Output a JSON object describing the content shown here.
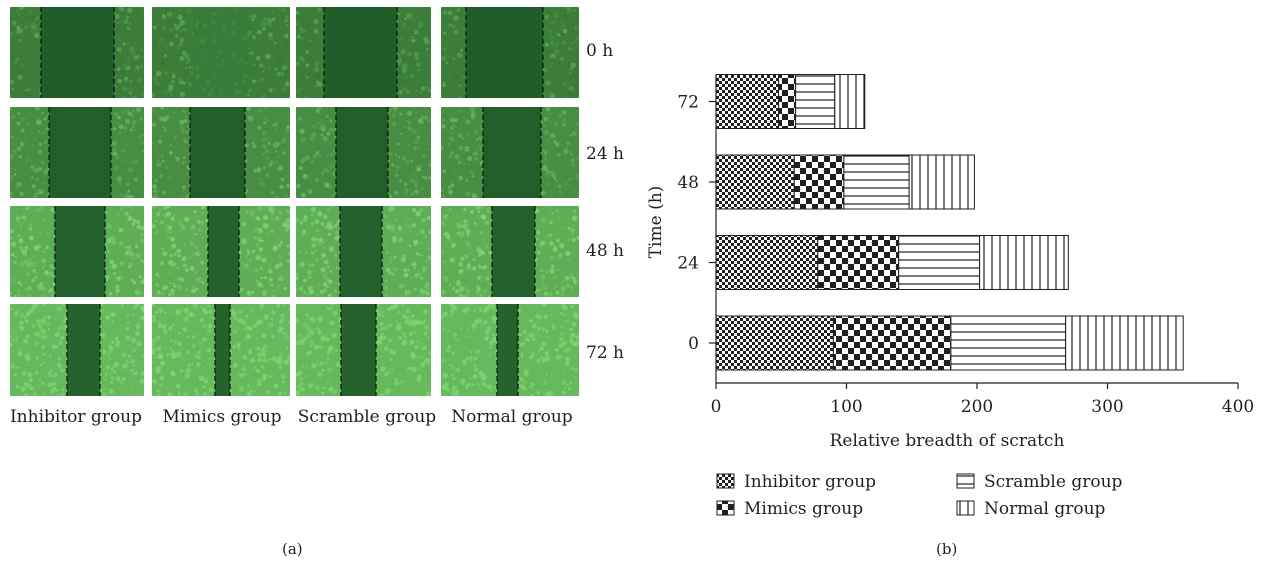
{
  "panel_a": {
    "time_labels": [
      "0 h",
      "24 h",
      "48 h",
      "72 h"
    ],
    "group_labels": [
      "Inhibitor group",
      "Mimics group",
      "Scramble group",
      "Normal group"
    ],
    "caption": "(a)"
  },
  "panel_b": {
    "caption": "(b)"
  },
  "colors": {
    "cells_dark": "#2e6b2e",
    "cells_light": "#7dd46f",
    "scratch": "#1f5a28",
    "ink": "#231f20"
  },
  "chart_data": {
    "type": "bar",
    "orientation": "horizontal",
    "stacked": true,
    "categories": [
      "0",
      "24",
      "48",
      "72"
    ],
    "series": [
      {
        "name": "Inhibitor group",
        "pattern": "fine-checker",
        "values": [
          90,
          78,
          60,
          48
        ]
      },
      {
        "name": "Mimics group",
        "pattern": "coarse-checker",
        "values": [
          90,
          62,
          38,
          13
        ]
      },
      {
        "name": "Scramble group",
        "pattern": "horizontal-lines",
        "values": [
          88,
          62,
          50,
          30
        ]
      },
      {
        "name": "Normal group",
        "pattern": "vertical-lines",
        "values": [
          90,
          68,
          50,
          23
        ]
      }
    ],
    "xlabel": "Relative breadth of scratch",
    "ylabel": "Time (h)",
    "xlim": [
      0,
      400
    ],
    "xticks": [
      "0",
      "100",
      "200",
      "300",
      "400"
    ],
    "grid": false,
    "legend_position": "bottom"
  }
}
